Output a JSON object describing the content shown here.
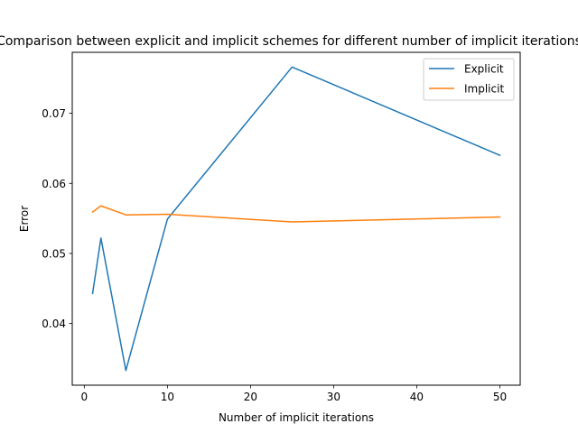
{
  "chart_data": {
    "type": "line",
    "title": "Comparison between explicit and implicit schemes for different number of implicit iterations",
    "xlabel": "Number of implicit iterations",
    "ylabel": "Error",
    "xlim": [
      -1.45,
      52.45
    ],
    "ylim": [
      0.0312,
      0.0787
    ],
    "xticks": [
      0,
      10,
      20,
      30,
      40,
      50
    ],
    "yticks": [
      0.04,
      0.05,
      0.06,
      0.07
    ],
    "ytick_labels": [
      "0.04",
      "0.05",
      "0.06",
      "0.07"
    ],
    "grid": false,
    "legend_position": "top-right",
    "x": [
      1,
      2,
      5,
      10,
      25,
      50
    ],
    "series": [
      {
        "name": "Explicit",
        "color": "#1f77b4",
        "values": [
          0.0443,
          0.0522,
          0.0333,
          0.0549,
          0.0766,
          0.064
        ]
      },
      {
        "name": "Implicit",
        "color": "#ff7f0e",
        "values": [
          0.0559,
          0.0568,
          0.0555,
          0.0556,
          0.0545,
          0.0552
        ]
      }
    ]
  }
}
